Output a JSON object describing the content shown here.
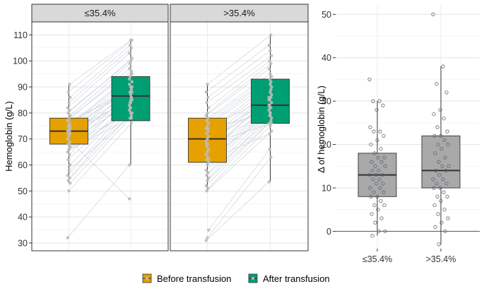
{
  "chart_data": [
    {
      "type": "box",
      "ylabel": "Hemoglobin (g/L)",
      "ylim": [
        27,
        115
      ],
      "yticks": [
        30,
        40,
        50,
        60,
        70,
        80,
        90,
        100,
        110
      ],
      "facets": [
        {
          "label": "≤35.4%",
          "boxes": [
            {
              "group": "Before transfusion",
              "q1": 68,
              "median": 73,
              "q3": 78,
              "whisker_low": 53,
              "whisker_high": 91
            },
            {
              "group": "After transfusion",
              "q1": 77,
              "median": 86.5,
              "q3": 94,
              "whisker_low": 60,
              "whisker_high": 108
            }
          ],
          "pairs": [
            [
              32,
              60
            ],
            [
              50,
              76
            ],
            [
              53,
              78
            ],
            [
              54,
              80
            ],
            [
              55,
              82
            ],
            [
              56,
              83
            ],
            [
              58,
              79
            ],
            [
              60,
              84
            ],
            [
              62,
              85
            ],
            [
              64,
              87
            ],
            [
              65,
              81
            ],
            [
              66,
              86
            ],
            [
              67,
              88
            ],
            [
              68,
              90
            ],
            [
              69,
              84
            ],
            [
              70,
              91
            ],
            [
              71,
              86
            ],
            [
              72,
              88
            ],
            [
              72,
              92
            ],
            [
              73,
              85
            ],
            [
              73,
              93
            ],
            [
              74,
              89
            ],
            [
              75,
              94
            ],
            [
              75,
              95
            ],
            [
              76,
              90
            ],
            [
              77,
              97
            ],
            [
              78,
              96
            ],
            [
              79,
              99
            ],
            [
              80,
              101
            ],
            [
              81,
              100
            ],
            [
              82,
              103
            ],
            [
              84,
              105
            ],
            [
              86,
              106
            ],
            [
              88,
              108
            ],
            [
              91,
              108
            ],
            [
              70,
              47
            ],
            [
              66,
              78
            ],
            [
              74,
              82
            ],
            [
              77,
              88
            ],
            [
              68,
              80
            ]
          ]
        },
        {
          "label": ">35.4%",
          "boxes": [
            {
              "group": "Before transfusion",
              "q1": 61,
              "median": 70,
              "q3": 78,
              "whisker_low": 50,
              "whisker_high": 91
            },
            {
              "group": "After transfusion",
              "q1": 76,
              "median": 83,
              "q3": 93,
              "whisker_low": 53.5,
              "whisker_high": 110
            }
          ],
          "pairs": [
            [
              31,
              53.5
            ],
            [
              32,
              63
            ],
            [
              35,
              66
            ],
            [
              50,
              73
            ],
            [
              51,
              75
            ],
            [
              52,
              76
            ],
            [
              54,
              77
            ],
            [
              55,
              79
            ],
            [
              56,
              78
            ],
            [
              57,
              80
            ],
            [
              58,
              81
            ],
            [
              60,
              82
            ],
            [
              61,
              83
            ],
            [
              62,
              84
            ],
            [
              63,
              79
            ],
            [
              64,
              85
            ],
            [
              65,
              86
            ],
            [
              66,
              82
            ],
            [
              67,
              87
            ],
            [
              68,
              88
            ],
            [
              69,
              83
            ],
            [
              70,
              89
            ],
            [
              71,
              85
            ],
            [
              72,
              90
            ],
            [
              73,
              91
            ],
            [
              74,
              86
            ],
            [
              75,
              92
            ],
            [
              76,
              93
            ],
            [
              77,
              94
            ],
            [
              78,
              95
            ],
            [
              79,
              97
            ],
            [
              80,
              99
            ],
            [
              82,
              100
            ],
            [
              84,
              102
            ],
            [
              86,
              104
            ],
            [
              88,
              106
            ],
            [
              91,
              110
            ],
            [
              62,
              72
            ],
            [
              68,
              76
            ],
            [
              74,
              80
            ]
          ]
        }
      ],
      "legend": [
        {
          "label": "Before transfusion",
          "color": "#E6A100"
        },
        {
          "label": "After transfusion",
          "color": "#009E73"
        }
      ],
      "legend_position": "bottom"
    },
    {
      "type": "box",
      "ylabel": "Δ of hemoglobin (g/L)",
      "ylim": [
        -4,
        52
      ],
      "yticks": [
        0,
        10,
        20,
        30,
        40,
        50
      ],
      "categories": [
        "≤35.4%",
        ">35.4%"
      ],
      "boxes": [
        {
          "group": "≤35.4%",
          "q1": 8,
          "median": 13,
          "q3": 18,
          "whisker_low": -1,
          "whisker_high": 30
        },
        {
          "group": ">35.4%",
          "q1": 10,
          "median": 14,
          "q3": 22,
          "whisker_low": -3,
          "whisker_high": 38
        }
      ],
      "points": [
        [
          35,
          30,
          30,
          29,
          28,
          24,
          23,
          23,
          22,
          21,
          20,
          19,
          18,
          17,
          17,
          16,
          16,
          15,
          15,
          14,
          14,
          13,
          13,
          13,
          12,
          12,
          11,
          11,
          10,
          10,
          9,
          9,
          8,
          8,
          7,
          6,
          6,
          5,
          4,
          3,
          2,
          0,
          0,
          -1
        ],
        [
          50,
          38,
          34,
          32,
          28,
          27,
          26,
          24,
          23,
          22,
          22,
          21,
          20,
          20,
          19,
          18,
          17,
          16,
          15,
          15,
          14,
          14,
          13,
          12,
          12,
          11,
          11,
          10,
          10,
          9,
          8,
          8,
          7,
          6,
          5,
          4,
          3,
          2,
          1,
          0,
          -3
        ]
      ]
    }
  ],
  "colors": {
    "before": "#E6A100",
    "after": "#009E73",
    "delta_box": "#A9A9A9",
    "strip_bg": "#D9D9D9",
    "pair_line": "#C5CDD6",
    "point": "#BDBDBD"
  }
}
